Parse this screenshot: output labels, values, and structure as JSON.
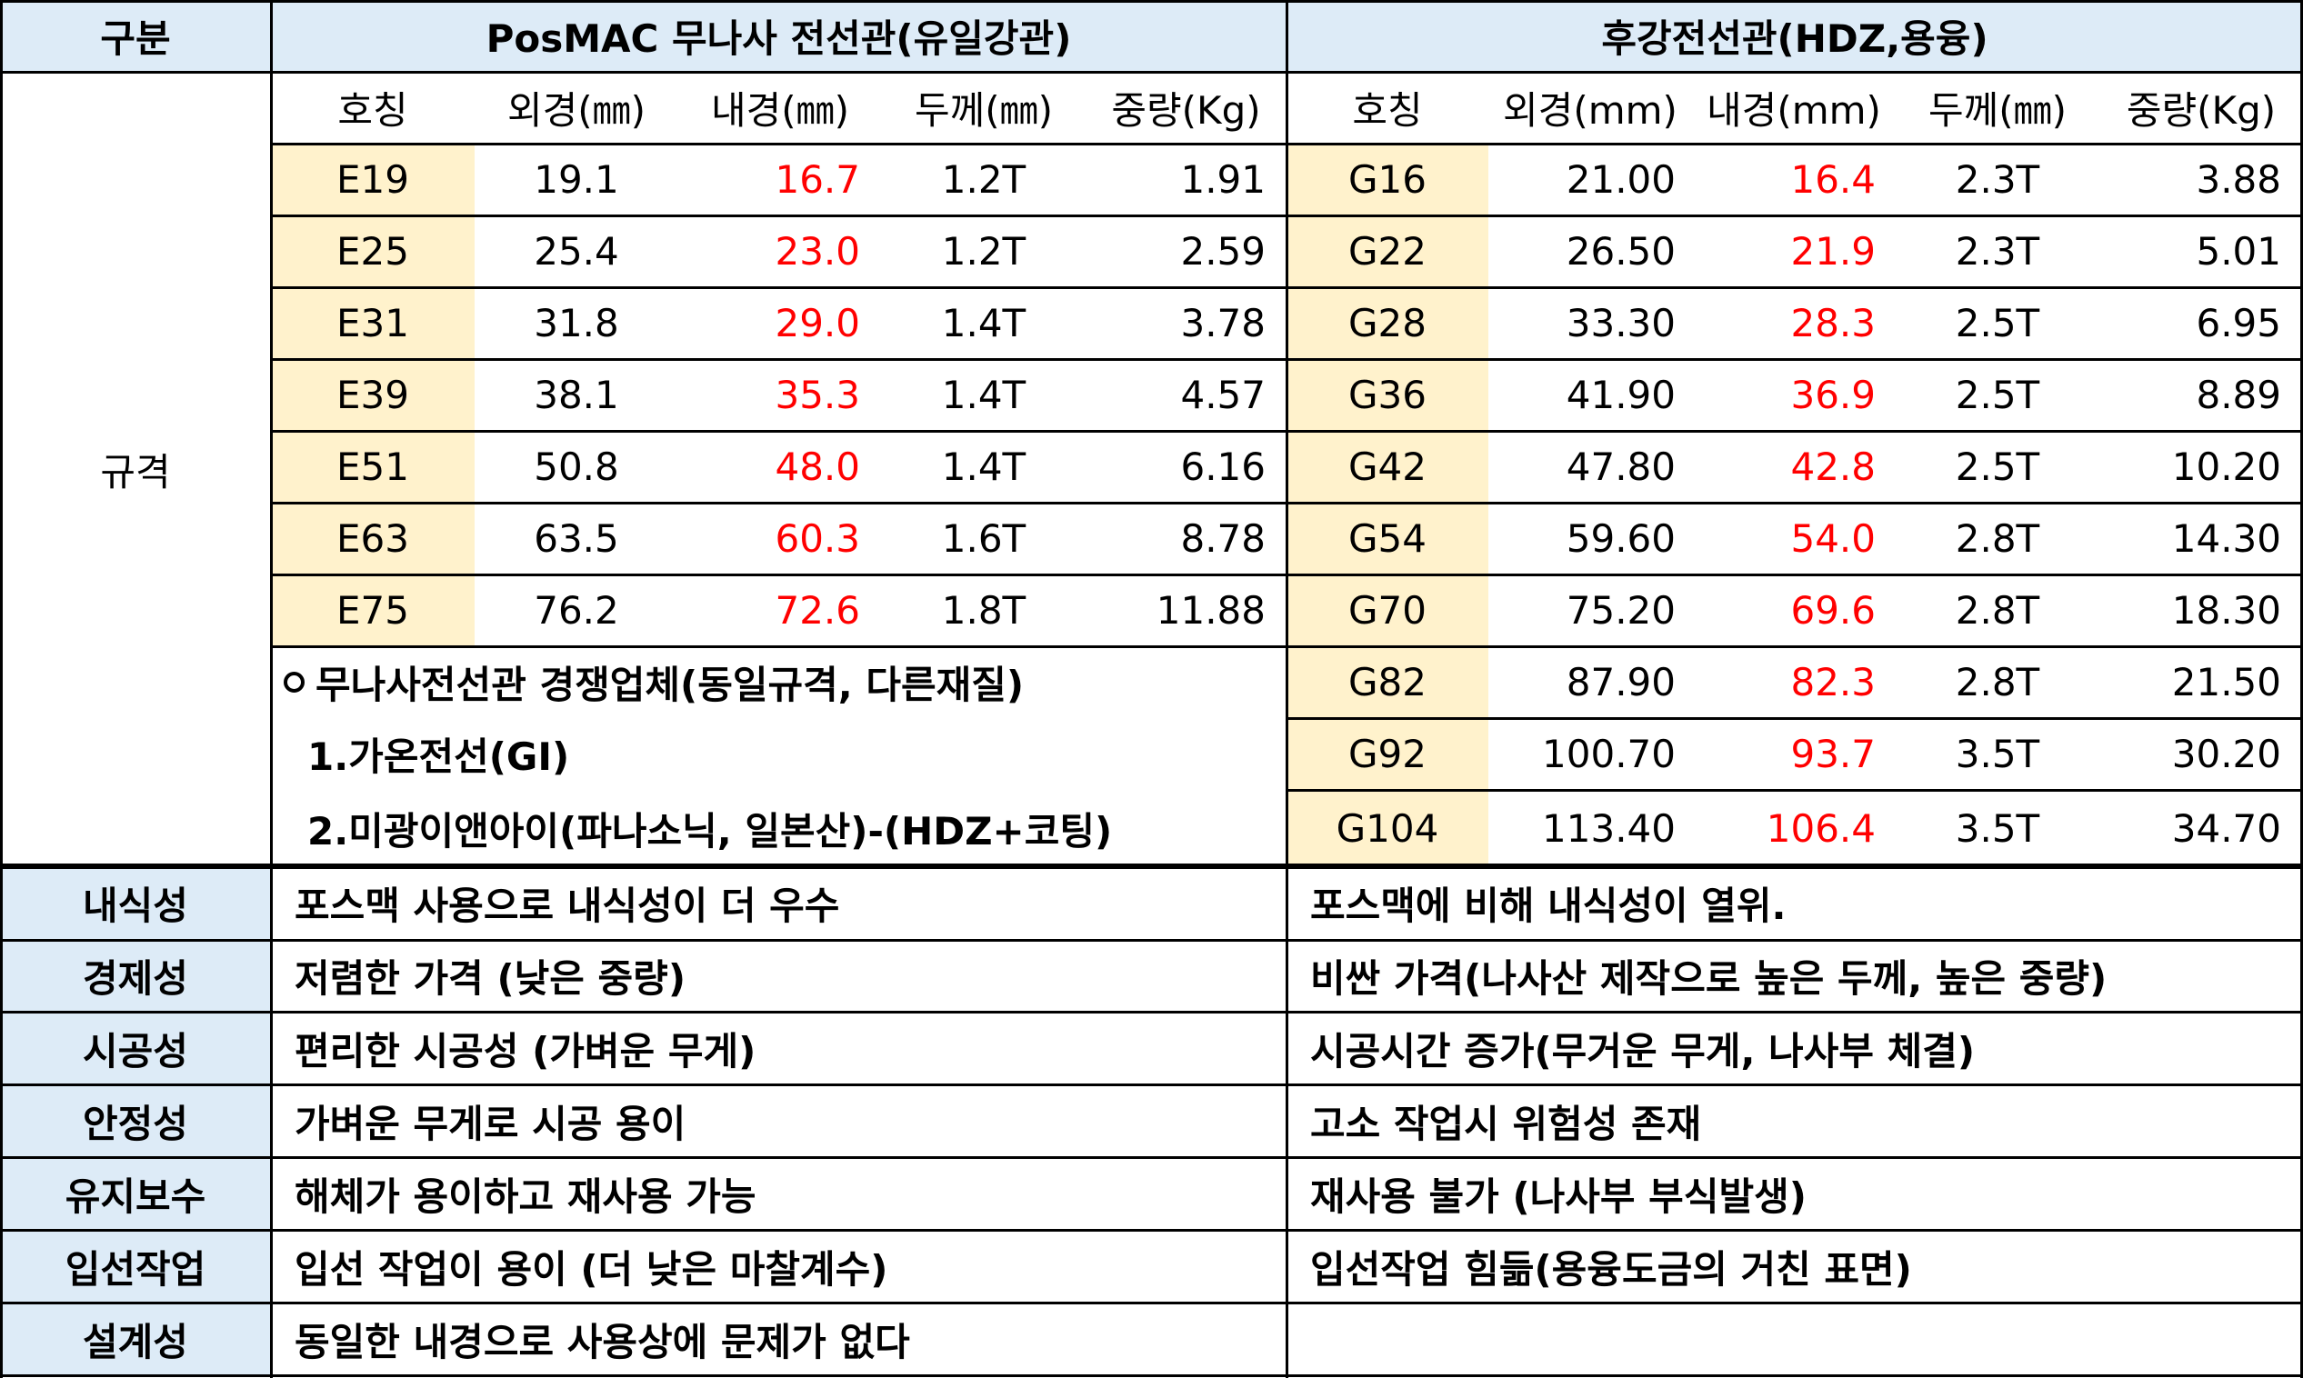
{
  "header": {
    "category": "구분",
    "posmac_title": "PosMAC 무나사 전선관(유일강관)",
    "hdz_title": "후강전선관(HDZ,용융)"
  },
  "spec_label": "규격",
  "posmac_columns": [
    "호칭",
    "외경(㎜)",
    "내경(㎜)",
    "두께(㎜)",
    "중량(Kg)"
  ],
  "hdz_columns": [
    "호칭",
    "외경(mm)",
    "내경(mm)",
    "두께(㎜)",
    "중량(Kg)"
  ],
  "posmac_rows": [
    {
      "code": "E19",
      "od": "19.1",
      "id": "16.7",
      "t": "1.2T",
      "w": "1.91"
    },
    {
      "code": "E25",
      "od": "25.4",
      "id": "23.0",
      "t": "1.2T",
      "w": "2.59"
    },
    {
      "code": "E31",
      "od": "31.8",
      "id": "29.0",
      "t": "1.4T",
      "w": "3.78"
    },
    {
      "code": "E39",
      "od": "38.1",
      "id": "35.3",
      "t": "1.4T",
      "w": "4.57"
    },
    {
      "code": "E51",
      "od": "50.8",
      "id": "48.0",
      "t": "1.4T",
      "w": "6.16"
    },
    {
      "code": "E63",
      "od": "63.5",
      "id": "60.3",
      "t": "1.6T",
      "w": "8.78"
    },
    {
      "code": "E75",
      "od": "76.2",
      "id": "72.6",
      "t": "1.8T",
      "w": "11.88"
    }
  ],
  "hdz_rows": [
    {
      "code": "G16",
      "od": "21.00",
      "id": "16.4",
      "t": "2.3T",
      "w": "3.88"
    },
    {
      "code": "G22",
      "od": "26.50",
      "id": "21.9",
      "t": "2.3T",
      "w": "5.01"
    },
    {
      "code": "G28",
      "od": "33.30",
      "id": "28.3",
      "t": "2.5T",
      "w": "6.95"
    },
    {
      "code": "G36",
      "od": "41.90",
      "id": "36.9",
      "t": "2.5T",
      "w": "8.89"
    },
    {
      "code": "G42",
      "od": "47.80",
      "id": "42.8",
      "t": "2.5T",
      "w": "10.20"
    },
    {
      "code": "G54",
      "od": "59.60",
      "id": "54.0",
      "t": "2.8T",
      "w": "14.30"
    },
    {
      "code": "G70",
      "od": "75.20",
      "id": "69.6",
      "t": "2.8T",
      "w": "18.30"
    },
    {
      "code": "G82",
      "od": "87.90",
      "id": "82.3",
      "t": "2.8T",
      "w": "21.50"
    },
    {
      "code": "G92",
      "od": "100.70",
      "id": "93.7",
      "t": "3.5T",
      "w": "30.20"
    },
    {
      "code": "G104",
      "od": "113.40",
      "id": "106.4",
      "t": "3.5T",
      "w": "34.70"
    }
  ],
  "competitors": {
    "heading": "무나사전선관 경쟁업체(동일규격, 다른재질)",
    "item1": "1.가온전선(GI)",
    "item2": "2.미광이앤아이(파나소닉, 일본산)-(HDZ+코팅)"
  },
  "comparison": [
    {
      "label": "내식성",
      "posmac": "포스맥 사용으로 내식성이 더 우수",
      "hdz": "포스맥에 비해 내식성이 열위."
    },
    {
      "label": "경제성",
      "posmac": "저렴한 가격 (낮은 중량)",
      "hdz": "비싼 가격(나사산 제작으로 높은 두께, 높은 중량)"
    },
    {
      "label": "시공성",
      "posmac": "편리한 시공성 (가벼운 무게)",
      "hdz": "시공시간 증가(무거운 무게, 나사부 체결)"
    },
    {
      "label": "안정성",
      "posmac": "가벼운 무게로 시공 용이",
      "hdz": "고소 작업시 위험성 존재"
    },
    {
      "label": "유지보수",
      "posmac": "해체가 용이하고 재사용 가능",
      "hdz": "재사용 불가 (나사부 부식발생)"
    },
    {
      "label": "입선작업",
      "posmac": "입선 작업이 용이 (더 낮은 마찰계수)",
      "hdz": "입선작업 힘듦(용융도금의 거친 표면)"
    },
    {
      "label": "설계성",
      "posmac": "동일한 내경으로 사용상에 문제가 없다",
      "hdz": ""
    }
  ],
  "colors": {
    "header_fill": "#ddebf7",
    "code_fill": "#fff2cc",
    "inner_diameter_text": "#ff0000"
  }
}
